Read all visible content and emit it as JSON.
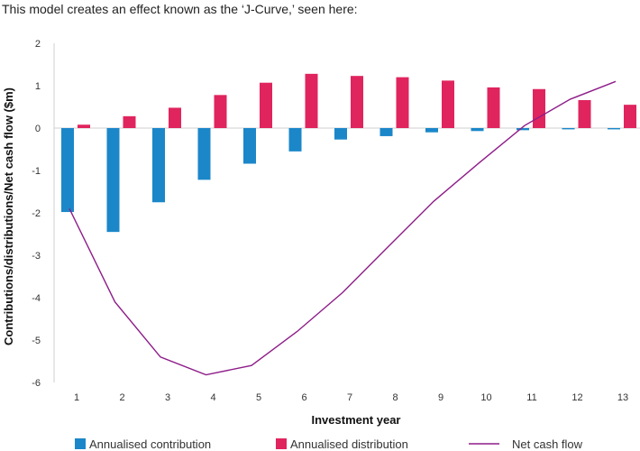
{
  "chart_data": {
    "type": "bar",
    "title": "This model creates an effect known as the ‘J-Curve,’ seen here:",
    "xlabel": "Investment year",
    "ylabel": "Contributions/distributions/Net cash flow ($m)",
    "categories": [
      "1",
      "2",
      "3",
      "4",
      "5",
      "6",
      "7",
      "8",
      "9",
      "10",
      "11",
      "12",
      "13"
    ],
    "yticks": [
      "2",
      "1",
      "0",
      "-1",
      "-2",
      "-3",
      "-4",
      "-5",
      "-6"
    ],
    "ylim": [
      -6,
      2
    ],
    "grid": false,
    "legend_position": "bottom",
    "series": [
      {
        "name": "Annualised contribution",
        "type": "bar",
        "color": "#1b87c9",
        "values": [
          -1.98,
          -2.45,
          -1.75,
          -1.22,
          -0.84,
          -0.55,
          -0.27,
          -0.19,
          -0.1,
          -0.07,
          -0.05,
          -0.03,
          -0.03
        ]
      },
      {
        "name": "Annualised distribution",
        "type": "bar",
        "color": "#e0245e",
        "values": [
          0.08,
          0.28,
          0.48,
          0.78,
          1.07,
          1.28,
          1.23,
          1.2,
          1.12,
          0.96,
          0.92,
          0.66,
          0.55
        ]
      },
      {
        "name": "Net cash flow",
        "type": "line",
        "color": "#8e1d8a",
        "values": [
          -1.9,
          -4.1,
          -5.4,
          -5.82,
          -5.6,
          -4.8,
          -3.88,
          -2.8,
          -1.73,
          -0.82,
          0.06,
          0.68,
          1.1
        ]
      }
    ]
  }
}
